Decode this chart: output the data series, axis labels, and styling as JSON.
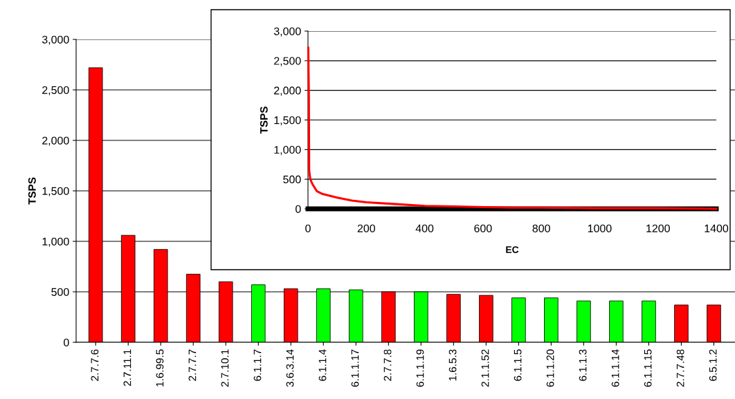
{
  "chart_data": [
    {
      "type": "bar",
      "ylabel": "TSPS",
      "categories": [
        "2.7.7.6",
        "2.7.11.1",
        "1.6.99.5",
        "2.7.7.7",
        "2.7.10.1",
        "6.1.1.7",
        "3.6.3.14",
        "6.1.1.4",
        "6.1.1.17",
        "2.7.7.8",
        "6.1.1.19",
        "1.6.5.3",
        "2.1.1.52",
        "6.1.1.5",
        "6.1.1.20",
        "6.1.1.3",
        "6.1.1.14",
        "6.1.1.15",
        "2.7.7.48",
        "6.5.1.2"
      ],
      "values": [
        2720,
        1060,
        920,
        675,
        600,
        570,
        530,
        530,
        520,
        500,
        500,
        475,
        465,
        440,
        440,
        410,
        410,
        410,
        370,
        370
      ],
      "colors": [
        "#ff0000",
        "#ff0000",
        "#ff0000",
        "#ff0000",
        "#ff0000",
        "#00ff00",
        "#ff0000",
        "#00ff00",
        "#00ff00",
        "#ff0000",
        "#00ff00",
        "#ff0000",
        "#ff0000",
        "#00ff00",
        "#00ff00",
        "#00ff00",
        "#00ff00",
        "#00ff00",
        "#ff0000",
        "#ff0000"
      ],
      "ylim": [
        0,
        3000
      ],
      "yticks": [
        {
          "value": 0,
          "label": "0"
        },
        {
          "value": 500,
          "label": "500"
        },
        {
          "value": 1000,
          "label": "1,000"
        },
        {
          "value": 1500,
          "label": "1,500"
        },
        {
          "value": 2000,
          "label": "2,000"
        },
        {
          "value": 2500,
          "label": "2,500"
        },
        {
          "value": 3000,
          "label": "3,000"
        }
      ],
      "grid": "y",
      "legend": false
    },
    {
      "type": "line",
      "xlabel": "EC",
      "ylabel": "TSPS",
      "x": [
        1,
        3,
        4,
        8,
        15,
        30,
        50,
        100,
        150,
        200,
        300,
        400,
        500,
        600,
        700,
        800,
        1000,
        1200,
        1400
      ],
      "series": [
        {
          "color": "#ff0000",
          "values": [
            2720,
            1900,
            650,
            500,
            420,
            300,
            250,
            190,
            140,
            110,
            80,
            50,
            40,
            30,
            20,
            20,
            10,
            10,
            0
          ]
        }
      ],
      "xlim": [
        0,
        1400
      ],
      "xticks": [
        0,
        200,
        400,
        600,
        800,
        1000,
        1200,
        1400
      ],
      "ylim": [
        0,
        3000
      ],
      "yticks": [
        {
          "value": 0,
          "label": "0"
        },
        {
          "value": 500,
          "label": "500"
        },
        {
          "value": 1000,
          "label": "1,000"
        },
        {
          "value": 1500,
          "label": "1,500"
        },
        {
          "value": 2000,
          "label": "2,000"
        },
        {
          "value": 2500,
          "label": "2,500"
        },
        {
          "value": 3000,
          "label": "3,000"
        }
      ],
      "grid": "y",
      "marker": "none",
      "line_style": "solid",
      "legend": false
    }
  ]
}
